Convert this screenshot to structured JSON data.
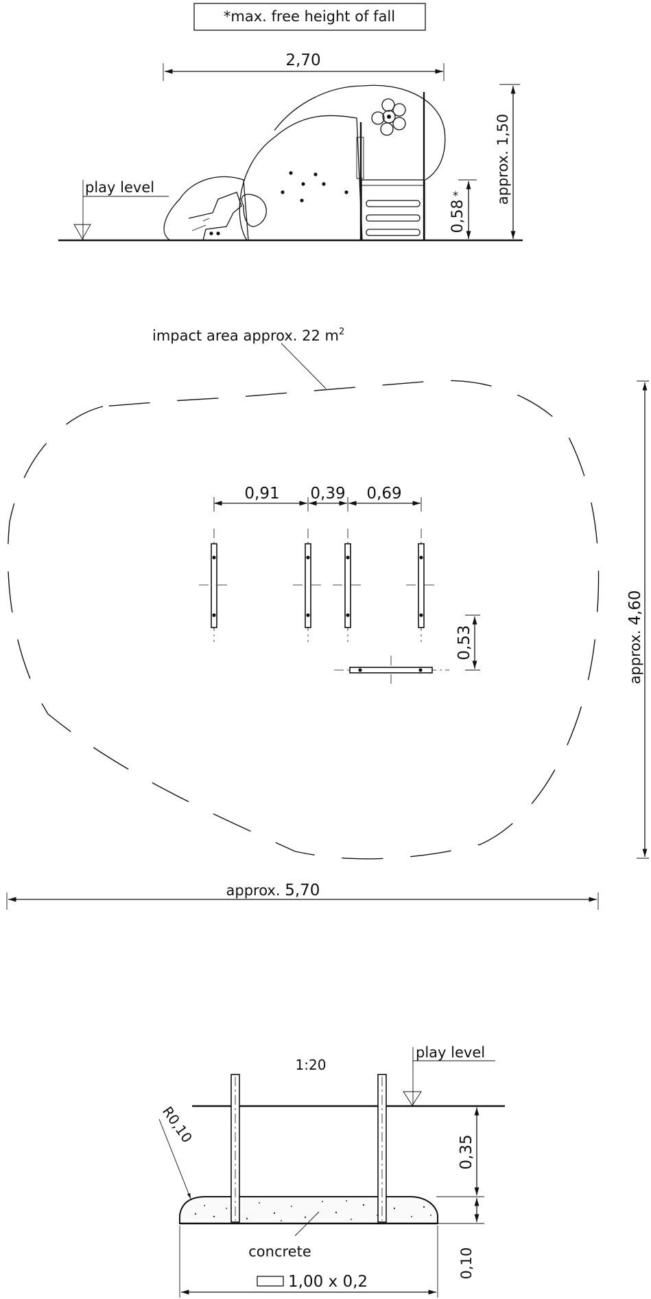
{
  "title_note": "*max. free height of fall",
  "side_view": {
    "width": "2,70",
    "height": "approx. 1,50",
    "fall_height": "0,58",
    "fall_marker": "*",
    "play_level": "play level"
  },
  "plan_view": {
    "impact_area": "impact area approx. 22 m",
    "impact_area_sup": "2",
    "spacing_1": "0,91",
    "spacing_2": "0,39",
    "spacing_3": "0,69",
    "offset": "0,53",
    "depth_prefix": "approx.",
    "depth": "4,60",
    "width_prefix": "approx.",
    "width": "5,70"
  },
  "foundation": {
    "scale": "1:20",
    "play_level": "play level",
    "radius": "R0,10",
    "depth_above": "0,35",
    "depth_slab": "0,10",
    "material": "concrete",
    "slab_size": "1,00 x 0,2"
  }
}
